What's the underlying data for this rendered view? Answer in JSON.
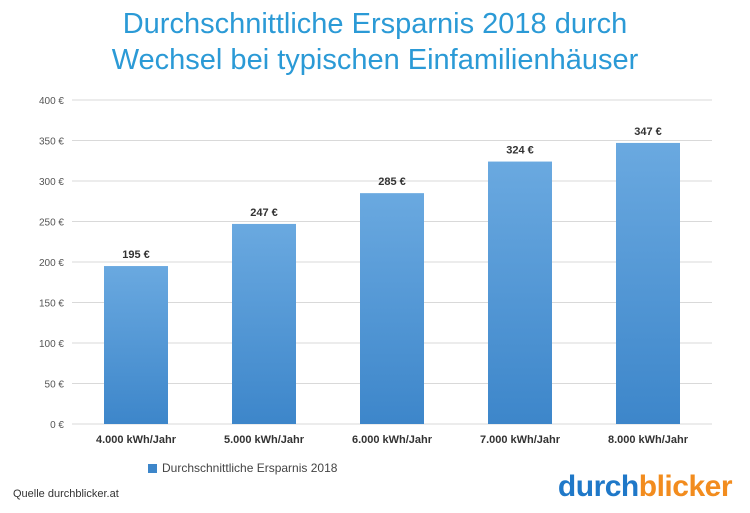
{
  "title": {
    "line1": "Durchschnittliche Ersparnis 2018 durch",
    "line2": "Wechsel bei typischen Einfamilienhäuser"
  },
  "colors": {
    "title": "#2b9ad6",
    "bar_top": "#6aa9e0",
    "bar_bottom": "#3d86ca",
    "gridline": "#d9d9d9",
    "logo_part1": "#1f78c8",
    "logo_part2": "#f28c1e"
  },
  "chart_data": {
    "type": "bar",
    "categories": [
      "4.000 kWh/Jahr",
      "5.000 kWh/Jahr",
      "6.000 kWh/Jahr",
      "7.000 kWh/Jahr",
      "8.000 kWh/Jahr"
    ],
    "series": [
      {
        "name": "Durchschnittliche Ersparnis 2018",
        "values": [
          195,
          247,
          285,
          324,
          347
        ]
      }
    ],
    "value_labels": [
      "195 €",
      "247 €",
      "285 €",
      "324 €",
      "347 €"
    ],
    "y_ticks": [
      0,
      50,
      100,
      150,
      200,
      250,
      300,
      350,
      400
    ],
    "y_tick_labels": [
      "0 €",
      "50 €",
      "100 €",
      "150 €",
      "200 €",
      "250 €",
      "300 €",
      "350 €",
      "400 €"
    ],
    "ylim": [
      0,
      400
    ],
    "grid": true,
    "legend_position": "bottom-left"
  },
  "legend": {
    "label": "Durchschnittliche Ersparnis 2018"
  },
  "source": {
    "text": "Quelle durchblicker.at"
  },
  "logo": {
    "part1": "durch",
    "part2": "blicker"
  }
}
